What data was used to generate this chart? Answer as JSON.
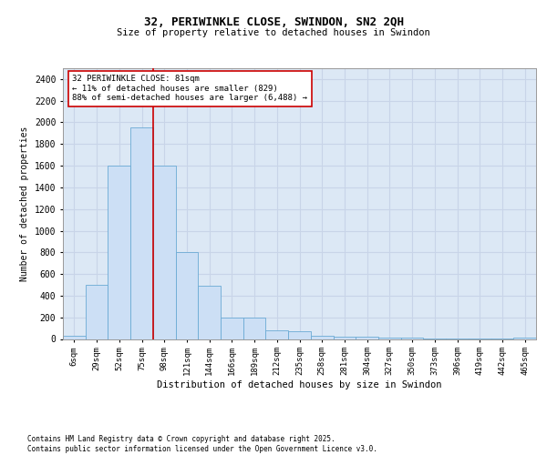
{
  "title": "32, PERIWINKLE CLOSE, SWINDON, SN2 2QH",
  "subtitle": "Size of property relative to detached houses in Swindon",
  "xlabel": "Distribution of detached houses by size in Swindon",
  "ylabel": "Number of detached properties",
  "bar_labels": [
    "6sqm",
    "29sqm",
    "52sqm",
    "75sqm",
    "98sqm",
    "121sqm",
    "144sqm",
    "166sqm",
    "189sqm",
    "212sqm",
    "235sqm",
    "258sqm",
    "281sqm",
    "304sqm",
    "327sqm",
    "350sqm",
    "373sqm",
    "396sqm",
    "419sqm",
    "442sqm",
    "465sqm"
  ],
  "bar_values": [
    30,
    500,
    1600,
    1950,
    1600,
    800,
    490,
    200,
    195,
    80,
    70,
    30,
    20,
    20,
    15,
    10,
    8,
    5,
    4,
    3,
    10
  ],
  "bar_color": "#ccdff5",
  "bar_edge_color": "#6aaad4",
  "property_line_x": 3.5,
  "property_line_color": "#cc0000",
  "annotation_text": "32 PERIWINKLE CLOSE: 81sqm\n← 11% of detached houses are smaller (829)\n88% of semi-detached houses are larger (6,488) →",
  "annotation_box_color": "#ffffff",
  "annotation_box_edge_color": "#cc0000",
  "ylim": [
    0,
    2500
  ],
  "yticks": [
    0,
    200,
    400,
    600,
    800,
    1000,
    1200,
    1400,
    1600,
    1800,
    2000,
    2200,
    2400
  ],
  "grid_color": "#c8d4e8",
  "background_color": "#dce8f5",
  "footer_line1": "Contains HM Land Registry data © Crown copyright and database right 2025.",
  "footer_line2": "Contains public sector information licensed under the Open Government Licence v3.0."
}
